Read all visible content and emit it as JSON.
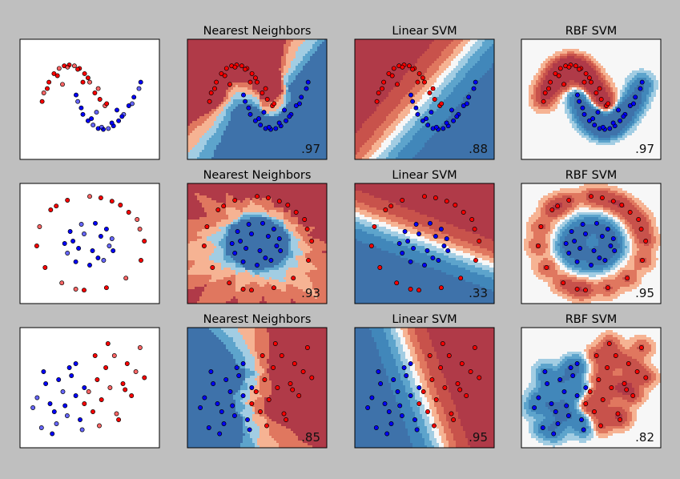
{
  "colors": {
    "figure_background": "#bfbfbf",
    "red_points": "#ff0000",
    "blue_points": "#0000ff",
    "point_edge": "#000000",
    "colormap": "RdBu (diverging red-white-blue)"
  },
  "chart_data": [
    {
      "type": "scatter",
      "title": "",
      "dataset": "moons",
      "row": 0,
      "column": 0,
      "series": [
        {
          "color": "red",
          "x": [
            -0.9,
            -0.75,
            -0.6,
            -0.45,
            -0.3,
            -0.15,
            0.0,
            0.15,
            0.3,
            0.45,
            0.6,
            0.75,
            0.9,
            -0.8,
            -0.5,
            -0.2,
            0.1,
            0.4,
            0.7,
            -0.95,
            0.95,
            -0.35,
            0.25
          ],
          "y": [
            0.35,
            0.6,
            0.8,
            0.92,
            0.98,
            1.0,
            0.98,
            0.92,
            0.8,
            0.6,
            0.35,
            0.2,
            0.05,
            0.45,
            0.75,
            0.95,
            0.9,
            0.7,
            0.45,
            0.15,
            0.1,
            0.55,
            0.6
          ]
        },
        {
          "color": "blue",
          "x": [
            0.1,
            0.25,
            0.4,
            0.55,
            0.7,
            0.85,
            1.0,
            1.15,
            1.3,
            1.45,
            1.6,
            1.75,
            1.9,
            0.2,
            0.5,
            0.8,
            1.1,
            1.4,
            1.7,
            0.05,
            1.95,
            0.65,
            1.25
          ],
          "y": [
            0.15,
            -0.15,
            -0.3,
            -0.4,
            -0.48,
            -0.5,
            -0.48,
            -0.42,
            -0.3,
            -0.15,
            0.05,
            0.25,
            0.45,
            0.0,
            -0.25,
            -0.45,
            -0.35,
            -0.2,
            0.1,
            0.3,
            0.6,
            -0.1,
            -0.05
          ]
        }
      ],
      "xlim": [
        -1.6,
        2.5
      ],
      "ylim": [
        -1.2,
        1.6
      ],
      "grid": false
    },
    {
      "type": "heatmap",
      "title": "Nearest Neighbors",
      "dataset": "moons",
      "classifier": "knn",
      "row": 0,
      "column": 1,
      "score": ".97",
      "xlim": [
        -1.6,
        2.5
      ],
      "ylim": [
        -1.2,
        1.6
      ]
    },
    {
      "type": "heatmap",
      "title": "Linear SVM",
      "dataset": "moons",
      "classifier": "linear",
      "row": 0,
      "column": 2,
      "score": ".88",
      "xlim": [
        -1.6,
        2.5
      ],
      "ylim": [
        -1.2,
        1.6
      ]
    },
    {
      "type": "heatmap",
      "title": "RBF SVM",
      "dataset": "moons",
      "classifier": "rbf",
      "row": 0,
      "column": 3,
      "score": ".97",
      "xlim": [
        -1.6,
        2.5
      ],
      "ylim": [
        -1.2,
        1.6
      ]
    },
    {
      "type": "scatter",
      "title": "",
      "dataset": "circles",
      "row": 1,
      "column": 0,
      "series": [
        {
          "color": "red",
          "x": [
            0.9,
            0.7,
            0.4,
            0.0,
            -0.4,
            -0.7,
            -0.9,
            -0.95,
            -0.8,
            -0.5,
            -0.1,
            0.3,
            0.65,
            0.92,
            0.98,
            0.85,
            -0.6,
            0.55,
            -0.25,
            0.2
          ],
          "y": [
            0.3,
            0.65,
            0.88,
            0.98,
            0.9,
            0.7,
            0.35,
            -0.05,
            -0.5,
            -0.82,
            -0.97,
            -0.92,
            -0.72,
            -0.35,
            0.05,
            0.5,
            0.78,
            0.8,
            -0.95,
            0.95
          ]
        },
        {
          "color": "blue",
          "x": [
            0.4,
            0.3,
            0.1,
            -0.15,
            -0.35,
            -0.45,
            -0.4,
            -0.25,
            0.0,
            0.25,
            0.42,
            0.2,
            -0.1,
            0.05,
            -0.3,
            0.35,
            0.15,
            -0.2
          ],
          "y": [
            0.1,
            0.3,
            0.42,
            0.4,
            0.25,
            0.0,
            -0.2,
            -0.38,
            -0.45,
            -0.35,
            -0.15,
            0.15,
            0.2,
            -0.15,
            0.05,
            -0.05,
            -0.3,
            -0.1
          ]
        }
      ],
      "xlim": [
        -1.25,
        1.25
      ],
      "ylim": [
        -1.25,
        1.25
      ],
      "grid": false
    },
    {
      "type": "heatmap",
      "title": "Nearest Neighbors",
      "dataset": "circles",
      "classifier": "knn",
      "row": 1,
      "column": 1,
      "score": ".93",
      "xlim": [
        -1.25,
        1.25
      ],
      "ylim": [
        -1.25,
        1.25
      ]
    },
    {
      "type": "heatmap",
      "title": "Linear SVM",
      "dataset": "circles",
      "classifier": "linear",
      "row": 1,
      "column": 2,
      "score": ".33",
      "xlim": [
        -1.25,
        1.25
      ],
      "ylim": [
        -1.25,
        1.25
      ]
    },
    {
      "type": "heatmap",
      "title": "RBF SVM",
      "dataset": "circles",
      "classifier": "rbf",
      "row": 1,
      "column": 3,
      "score": ".95",
      "xlim": [
        -1.25,
        1.25
      ],
      "ylim": [
        -1.25,
        1.25
      ]
    },
    {
      "type": "scatter",
      "title": "",
      "dataset": "linearly separable",
      "row": 2,
      "column": 0,
      "series": [
        {
          "color": "red",
          "x": [
            1.2,
            1.6,
            2.0,
            2.4,
            2.8,
            3.2,
            3.6,
            1.4,
            1.8,
            2.2,
            2.6,
            3.0,
            3.4,
            1.0,
            1.5,
            2.5,
            3.8,
            2.9,
            1.7,
            2.1
          ],
          "y": [
            0.8,
            1.4,
            2.0,
            2.6,
            1.2,
            0.6,
            3.0,
            -0.2,
            0.4,
            1.0,
            -0.6,
            2.2,
            1.8,
            0.2,
            2.6,
            -0.3,
            1.5,
            0.9,
            -0.9,
            3.2
          ]
        },
        {
          "color": "blue",
          "x": [
            -1.2,
            -0.8,
            -0.4,
            0.0,
            0.4,
            0.8,
            -1.0,
            -0.6,
            -0.2,
            0.2,
            0.6,
            1.0,
            -1.4,
            -0.5,
            0.3,
            0.9,
            -0.9,
            0.1,
            -0.3,
            0.6
          ],
          "y": [
            0.5,
            1.2,
            -0.2,
            0.8,
            1.6,
            -0.6,
            -1.0,
            0.2,
            1.4,
            -0.4,
            0.6,
            1.0,
            0.0,
            -1.3,
            2.0,
            -1.1,
            1.8,
            0.1,
            -0.8,
            2.2
          ]
        }
      ],
      "xlim": [
        -2.0,
        4.5
      ],
      "ylim": [
        -2.0,
        4.0
      ],
      "grid": false
    },
    {
      "type": "heatmap",
      "title": "Nearest Neighbors",
      "dataset": "linearly separable",
      "classifier": "knn",
      "row": 2,
      "column": 1,
      "score": ".85",
      "xlim": [
        -2.0,
        4.5
      ],
      "ylim": [
        -2.0,
        4.0
      ]
    },
    {
      "type": "heatmap",
      "title": "Linear SVM",
      "dataset": "linearly separable",
      "classifier": "linear",
      "row": 2,
      "column": 2,
      "score": ".95",
      "xlim": [
        -2.0,
        4.5
      ],
      "ylim": [
        -2.0,
        4.0
      ]
    },
    {
      "type": "heatmap",
      "title": "RBF SVM",
      "dataset": "linearly separable",
      "classifier": "rbf",
      "row": 2,
      "column": 3,
      "score": ".82",
      "xlim": [
        -2.0,
        4.5
      ],
      "ylim": [
        -2.0,
        4.0
      ]
    }
  ]
}
